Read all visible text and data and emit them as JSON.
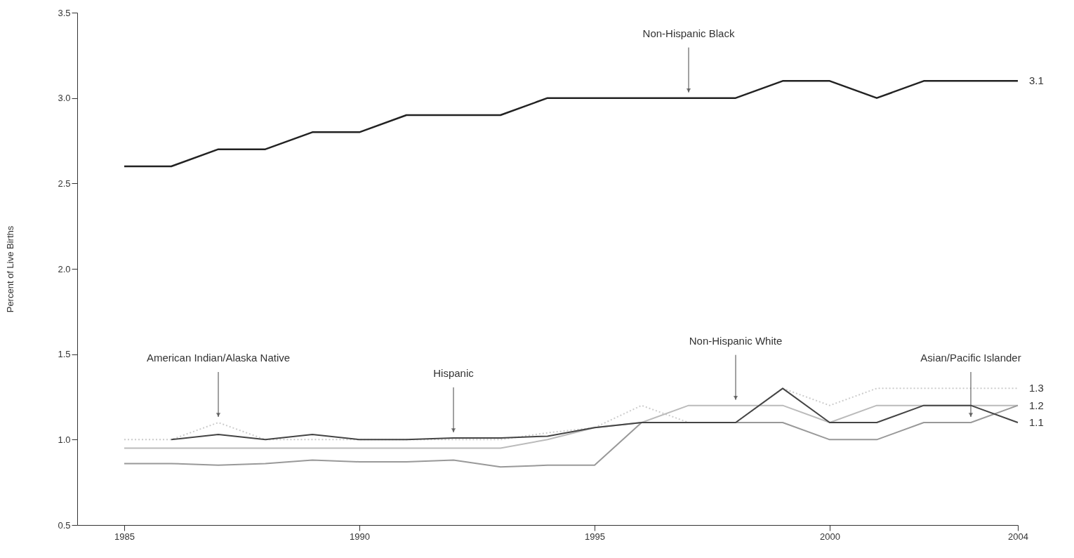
{
  "chart_data": {
    "type": "line",
    "ylabel": "Percent of Live Births",
    "x": [
      1985,
      1986,
      1987,
      1988,
      1989,
      1990,
      1991,
      1992,
      1993,
      1994,
      1995,
      1996,
      1997,
      1998,
      1999,
      2000,
      2001,
      2002,
      2003,
      2004
    ],
    "series": [
      {
        "color": "#222222",
        "values": [
          2.6,
          2.6,
          2.7,
          2.7,
          2.8,
          2.8,
          2.9,
          2.9,
          2.9,
          3.0,
          3.0,
          3.0,
          3.0,
          3.0,
          3.1,
          3.1,
          3.0,
          3.1,
          3.1,
          3.1
        ],
        "value_labels": [
          null,
          null,
          null,
          null,
          null,
          null,
          null,
          null,
          null,
          null,
          null,
          null,
          null,
          null,
          null,
          null,
          null,
          null,
          null,
          "3.1"
        ]
      },
      {
        "color": "#cccccc",
        "line_style": "dotted",
        "values": [
          1.0,
          1.0,
          1.1,
          1.0,
          1.0,
          1.0,
          1.0,
          1.0,
          1.0,
          1.04,
          1.07,
          1.2,
          1.1,
          1.1,
          1.3,
          1.2,
          1.3,
          1.3,
          1.3,
          1.3
        ],
        "value_labels": [
          null,
          null,
          null,
          null,
          null,
          null,
          null,
          null,
          null,
          null,
          null,
          null,
          null,
          null,
          null,
          null,
          null,
          null,
          null,
          "1.3"
        ]
      },
      {
        "color": "#bbbbbb",
        "values": [
          0.95,
          0.95,
          0.95,
          0.95,
          0.95,
          0.95,
          0.95,
          0.95,
          0.95,
          1.0,
          1.07,
          1.1,
          1.2,
          1.2,
          1.2,
          1.1,
          1.2,
          1.2,
          1.2,
          1.2
        ],
        "value_labels": [
          null,
          null,
          null,
          null,
          null,
          null,
          null,
          null,
          null,
          null,
          null,
          null,
          null,
          null,
          null,
          null,
          null,
          null,
          null,
          "1.2"
        ]
      },
      {
        "color": "#999999",
        "values": [
          0.86,
          0.86,
          0.85,
          0.86,
          0.88,
          0.87,
          0.87,
          0.88,
          0.84,
          0.85,
          0.85,
          1.1,
          1.1,
          1.1,
          1.1,
          1.0,
          1.0,
          1.1,
          1.1,
          1.2
        ]
      },
      {
        "color": "#444444",
        "values": [
          null,
          1.0,
          1.03,
          1.0,
          1.03,
          1.0,
          1.0,
          1.01,
          1.01,
          1.02,
          1.07,
          1.1,
          1.1,
          1.1,
          1.3,
          1.1,
          1.1,
          1.2,
          1.2,
          1.1
        ],
        "value_labels": [
          null,
          null,
          null,
          null,
          null,
          null,
          null,
          null,
          null,
          null,
          null,
          null,
          null,
          null,
          null,
          null,
          null,
          null,
          null,
          "1.1"
        ]
      }
    ],
    "annotations": [
      {
        "text": "Non-Hispanic Black",
        "x": 1997,
        "y": 3.0
      },
      {
        "text": "American Indian/Alaska Native",
        "x": 1987,
        "y": 1.1
      },
      {
        "text": "Hispanic",
        "x": 1992,
        "y": 1.01
      },
      {
        "text": "Non-Hispanic White",
        "x": 1998,
        "y": 1.2
      },
      {
        "text": "Asian/Pacific Islander",
        "x": 2003,
        "y": 1.1
      }
    ],
    "xlim": [
      1984,
      2004
    ],
    "xticks": [
      1985,
      1990,
      1995,
      2000,
      2004
    ],
    "ylim": [
      0.5,
      3.5
    ],
    "yticks": [
      0.5,
      {
        "value": 1,
        "label": "1.0"
      },
      1.5,
      {
        "value": 2,
        "label": "2.0"
      },
      2.5,
      {
        "value": 3,
        "label": "3.0"
      },
      3.5
    ],
    "grid": false,
    "marker": "none"
  }
}
